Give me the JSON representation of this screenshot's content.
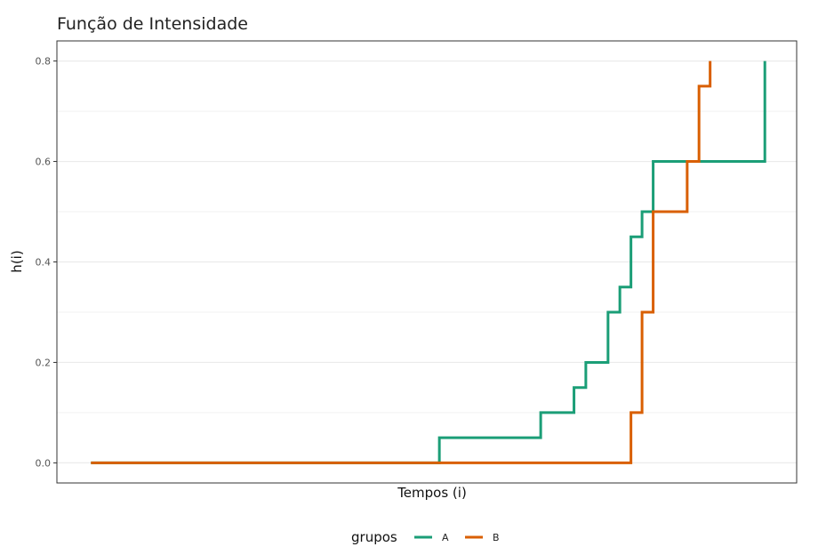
{
  "chart_data": {
    "type": "line",
    "step": true,
    "title": "Função de Intensidade",
    "xlabel": "Tempos (i)",
    "ylabel": "h(i)",
    "xlim": [
      0,
      10
    ],
    "ylim": [
      -0.04,
      0.84
    ],
    "yticks": [
      0.0,
      0.2,
      0.4,
      0.6,
      0.8
    ],
    "ytick_labels": [
      "0.0",
      "0.2",
      "0.4",
      "0.6",
      "0.8"
    ],
    "grid": true,
    "legend": {
      "title": "grupos",
      "position": "bottom"
    },
    "series": [
      {
        "name": "A",
        "color": "#1b9e77",
        "x": [
          0.46,
          5.17,
          6.54,
          6.99,
          7.15,
          7.45,
          7.61,
          7.76,
          7.91,
          8.06,
          9.57
        ],
        "y": [
          0.0,
          0.05,
          0.1,
          0.15,
          0.2,
          0.3,
          0.35,
          0.45,
          0.5,
          0.6,
          0.8
        ]
      },
      {
        "name": "B",
        "color": "#d95f02",
        "x": [
          0.46,
          7.76,
          7.91,
          8.06,
          8.52,
          8.68,
          8.83
        ],
        "y": [
          0.0,
          0.1,
          0.3,
          0.5,
          0.6,
          0.75,
          0.8
        ]
      }
    ]
  }
}
